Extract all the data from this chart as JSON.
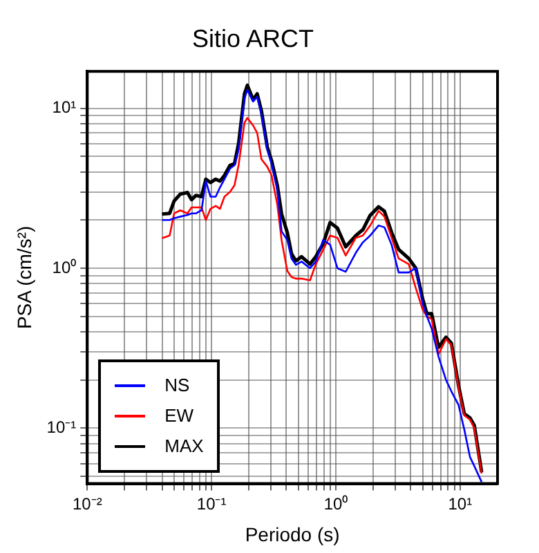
{
  "chart_data": {
    "type": "line",
    "title": "Sitio ARCT",
    "xlabel": "Periodo (s)",
    "ylabel": "PSA (cm/s²)",
    "log": "xy",
    "grid": true,
    "legend": "bottom left",
    "marker": "none",
    "line_style": "solid",
    "xlim": [
      0.01,
      20
    ],
    "ylim": [
      0.045,
      17
    ],
    "xticks": [
      {
        "value": 0.01,
        "label": "10⁻²"
      },
      {
        "value": 0.02,
        "label": null
      },
      {
        "value": 0.03,
        "label": null
      },
      {
        "value": 0.04,
        "label": null
      },
      {
        "value": 0.05,
        "label": null
      },
      {
        "value": 0.06,
        "label": null
      },
      {
        "value": 0.07,
        "label": null
      },
      {
        "value": 0.08,
        "label": null
      },
      {
        "value": 0.09,
        "label": null
      },
      {
        "value": 0.1,
        "label": "10⁻¹"
      },
      {
        "value": 0.2,
        "label": null
      },
      {
        "value": 0.3,
        "label": null
      },
      {
        "value": 0.4,
        "label": null
      },
      {
        "value": 0.5,
        "label": null
      },
      {
        "value": 0.6,
        "label": null
      },
      {
        "value": 0.7,
        "label": null
      },
      {
        "value": 0.8,
        "label": null
      },
      {
        "value": 0.9,
        "label": null
      },
      {
        "value": 1,
        "label": "10⁰"
      },
      {
        "value": 2,
        "label": null
      },
      {
        "value": 3,
        "label": null
      },
      {
        "value": 4,
        "label": null
      },
      {
        "value": 5,
        "label": null
      },
      {
        "value": 6,
        "label": null
      },
      {
        "value": 7,
        "label": null
      },
      {
        "value": 8,
        "label": null
      },
      {
        "value": 9,
        "label": null
      },
      {
        "value": 10,
        "label": "10¹"
      }
    ],
    "yticks": [
      {
        "value": 0.05,
        "label": null
      },
      {
        "value": 0.06,
        "label": null
      },
      {
        "value": 0.07,
        "label": null
      },
      {
        "value": 0.08,
        "label": null
      },
      {
        "value": 0.09,
        "label": null
      },
      {
        "value": 0.1,
        "label": "10⁻¹"
      },
      {
        "value": 0.2,
        "label": null
      },
      {
        "value": 0.3,
        "label": null
      },
      {
        "value": 0.4,
        "label": null
      },
      {
        "value": 0.5,
        "label": null
      },
      {
        "value": 0.6,
        "label": null
      },
      {
        "value": 0.7,
        "label": null
      },
      {
        "value": 0.8,
        "label": null
      },
      {
        "value": 0.9,
        "label": null
      },
      {
        "value": 1,
        "label": "10⁰"
      },
      {
        "value": 2,
        "label": null
      },
      {
        "value": 3,
        "label": null
      },
      {
        "value": 4,
        "label": null
      },
      {
        "value": 5,
        "label": null
      },
      {
        "value": 6,
        "label": null
      },
      {
        "value": 7,
        "label": null
      },
      {
        "value": 8,
        "label": null
      },
      {
        "value": 9,
        "label": null
      },
      {
        "value": 10,
        "label": "10¹"
      }
    ],
    "x": [
      0.04,
      0.046,
      0.05,
      0.056,
      0.064,
      0.069,
      0.075,
      0.083,
      0.09,
      0.098,
      0.108,
      0.117,
      0.127,
      0.141,
      0.153,
      0.165,
      0.184,
      0.194,
      0.216,
      0.233,
      0.252,
      0.281,
      0.304,
      0.338,
      0.366,
      0.407,
      0.44,
      0.477,
      0.53,
      0.62,
      0.69,
      0.79,
      0.9,
      1.03,
      1.2,
      1.45,
      1.65,
      1.89,
      2.21,
      2.46,
      2.81,
      3.2,
      3.86,
      4.4,
      5.0,
      5.4,
      5.9,
      6.7,
      7.7,
      8.5,
      9.7,
      10.8,
      12,
      13,
      14.9
    ],
    "series": [
      {
        "name": "NS",
        "color": "#0000ff",
        "values": [
          2.0,
          2.0,
          2.05,
          2.1,
          2.15,
          2.2,
          2.2,
          2.3,
          3.5,
          2.8,
          2.8,
          3.2,
          3.6,
          4.2,
          4.4,
          5.5,
          11.5,
          13.0,
          11.0,
          11.8,
          9.2,
          5.5,
          4.5,
          3.1,
          1.7,
          1.5,
          1.15,
          1.05,
          1.1,
          1.0,
          1.1,
          1.5,
          1.4,
          1.0,
          0.95,
          1.25,
          1.45,
          1.6,
          1.85,
          1.8,
          1.4,
          0.94,
          0.94,
          1.0,
          0.6,
          0.5,
          0.42,
          0.28,
          0.2,
          0.17,
          0.14,
          0.098,
          0.066,
          0.058,
          0.046
        ]
      },
      {
        "name": "EW",
        "color": "#ff0000",
        "values": [
          1.54,
          1.6,
          2.2,
          2.3,
          2.2,
          2.4,
          2.4,
          2.4,
          2.0,
          2.35,
          2.45,
          2.35,
          2.8,
          3.0,
          3.3,
          4.4,
          8.1,
          8.7,
          7.8,
          7.0,
          4.8,
          4.3,
          3.8,
          2.5,
          1.5,
          0.96,
          0.88,
          0.86,
          0.86,
          0.84,
          1.06,
          1.3,
          1.6,
          1.55,
          1.2,
          1.55,
          1.6,
          1.85,
          2.28,
          2.1,
          1.55,
          1.15,
          1.06,
          0.75,
          0.55,
          0.5,
          0.48,
          0.29,
          0.36,
          0.33,
          0.18,
          0.12,
          0.113,
          0.1,
          0.052
        ]
      },
      {
        "name": "MAX",
        "color": "#000000",
        "values": [
          2.18,
          2.2,
          2.63,
          2.9,
          2.97,
          2.68,
          2.85,
          2.8,
          3.6,
          3.43,
          3.6,
          3.5,
          3.8,
          4.4,
          4.5,
          6.0,
          12.3,
          13.9,
          11.3,
          12.3,
          9.6,
          5.7,
          4.7,
          3.3,
          2.18,
          1.67,
          1.23,
          1.11,
          1.18,
          1.06,
          1.18,
          1.42,
          1.93,
          1.78,
          1.36,
          1.6,
          1.74,
          2.14,
          2.42,
          2.27,
          1.67,
          1.31,
          1.15,
          1.0,
          0.64,
          0.52,
          0.52,
          0.32,
          0.37,
          0.34,
          0.185,
          0.123,
          0.116,
          0.104,
          0.053
        ]
      }
    ]
  }
}
